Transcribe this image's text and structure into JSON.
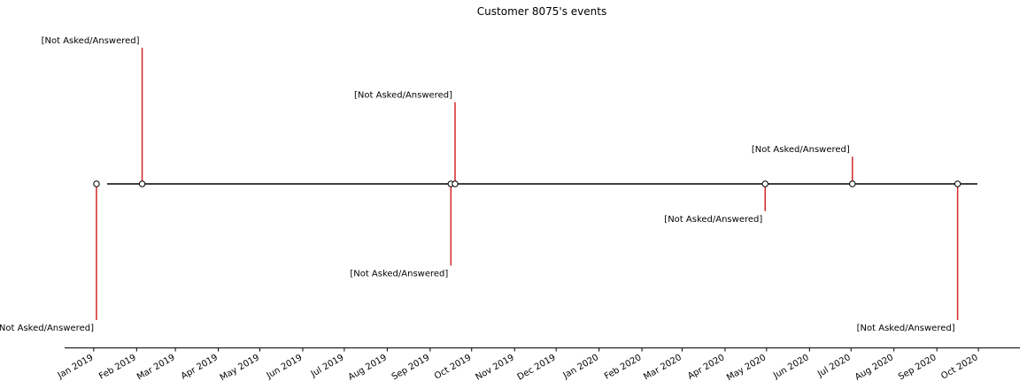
{
  "chart_data": {
    "type": "timeline",
    "title": "Customer 8075's events",
    "colors": {
      "stem": "#d62728",
      "baseline": "#000000",
      "marker_face": "#ffffff",
      "marker_edge": "#000000"
    },
    "ticks": [
      "Jan 2019",
      "Feb 2019",
      "Mar 2019",
      "Apr 2019",
      "May 2019",
      "Jun 2019",
      "Jul 2019",
      "Aug 2019",
      "Sep 2019",
      "Oct 2019",
      "Nov 2019",
      "Dec 2019",
      "Jan 2020",
      "Feb 2020",
      "Mar 2020",
      "Apr 2020",
      "May 2020",
      "Jun 2020",
      "Jul 2020",
      "Aug 2020",
      "Sep 2020",
      "Oct 2020"
    ],
    "tick_dates": [
      "2019-01-01",
      "2019-02-01",
      "2019-03-01",
      "2019-04-01",
      "2019-05-01",
      "2019-06-01",
      "2019-07-01",
      "2019-08-01",
      "2019-09-01",
      "2019-10-01",
      "2019-11-01",
      "2019-12-01",
      "2020-01-01",
      "2020-02-01",
      "2020-03-01",
      "2020-04-01",
      "2020-05-01",
      "2020-06-01",
      "2020-07-01",
      "2020-08-01",
      "2020-09-01",
      "2020-10-01"
    ],
    "xlim": [
      "2018-12-11",
      "2020-10-31"
    ],
    "ylim": [
      -6,
      6
    ],
    "events": [
      {
        "date": "2019-01-03",
        "level": -5,
        "label": "[Not Asked/Answered]"
      },
      {
        "date": "2019-02-05",
        "level": 5,
        "label": "[Not Asked/Answered]"
      },
      {
        "date": "2019-09-16",
        "level": -3,
        "label": "[Not Asked/Answered]"
      },
      {
        "date": "2019-09-19",
        "level": 3,
        "label": "[Not Asked/Answered]"
      },
      {
        "date": "2020-04-30",
        "level": -1,
        "label": "[Not Asked/Answered]"
      },
      {
        "date": "2020-07-02",
        "level": 1,
        "label": "[Not Asked/Answered]"
      },
      {
        "date": "2020-09-16",
        "level": -5,
        "label": "[Not Asked/Answered]"
      }
    ]
  }
}
